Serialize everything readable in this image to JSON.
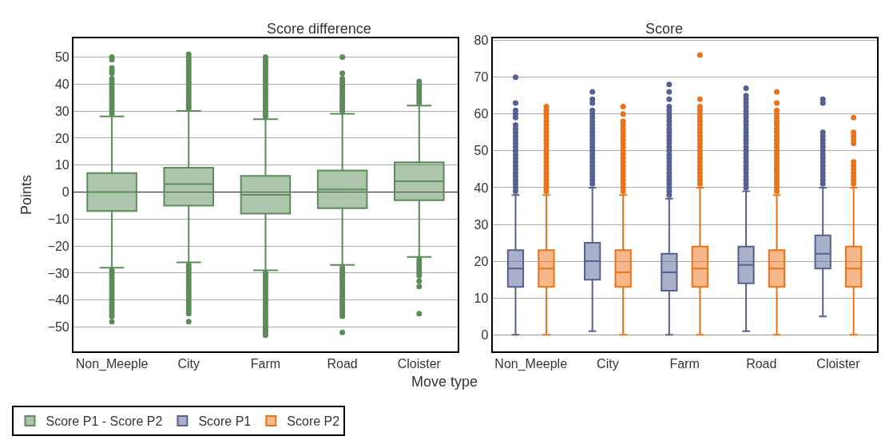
{
  "chart_data": [
    {
      "type": "box",
      "title": "Score difference",
      "ylabel": "Points",
      "categories": [
        "Non_Meeple",
        "City",
        "Farm",
        "Road",
        "Cloister"
      ],
      "ylim": [
        -59,
        57
      ],
      "yticks": [
        -50,
        -40,
        -30,
        -20,
        -10,
        0,
        10,
        20,
        30,
        40,
        50
      ],
      "grid": "y",
      "legend": "bottom",
      "series": [
        {
          "name": "Score P1 - Score P2",
          "color": "#5b8c5a",
          "boxes": [
            {
              "low": -28,
              "q1": -7,
              "median": 0,
              "q3": 7,
              "high": 28,
              "outliers": [
                29,
                30,
                31,
                32,
                33,
                34,
                35,
                36,
                37,
                38,
                39,
                40,
                41,
                42,
                44,
                45,
                46,
                49,
                50,
                -29,
                -30,
                -31,
                -32,
                -33,
                -34,
                -35,
                -36,
                -37,
                -38,
                -39,
                -40,
                -41,
                -42,
                -43,
                -44,
                -45,
                -46,
                -48
              ]
            },
            {
              "low": -26,
              "q1": -5,
              "median": 3,
              "q3": 9,
              "high": 30,
              "outliers": [
                31,
                32,
                33,
                34,
                35,
                36,
                37,
                38,
                39,
                40,
                41,
                42,
                43,
                44,
                45,
                46,
                47,
                48,
                49,
                50,
                51,
                -27,
                -28,
                -29,
                -30,
                -31,
                -32,
                -33,
                -34,
                -35,
                -36,
                -37,
                -38,
                -39,
                -40,
                -41,
                -42,
                -43,
                -44,
                -45,
                -48
              ]
            },
            {
              "low": -29,
              "q1": -8,
              "median": -1,
              "q3": 6,
              "high": 27,
              "outliers": [
                28,
                29,
                30,
                31,
                32,
                33,
                34,
                35,
                36,
                37,
                38,
                39,
                40,
                41,
                42,
                43,
                44,
                45,
                46,
                47,
                48,
                49,
                50,
                -30,
                -31,
                -32,
                -33,
                -34,
                -35,
                -36,
                -37,
                -38,
                -39,
                -40,
                -41,
                -42,
                -43,
                -44,
                -45,
                -46,
                -47,
                -48,
                -49,
                -50,
                -51,
                -52,
                -53
              ]
            },
            {
              "low": -27,
              "q1": -6,
              "median": 1,
              "q3": 8,
              "high": 29,
              "outliers": [
                30,
                31,
                32,
                33,
                34,
                35,
                36,
                37,
                38,
                39,
                40,
                41,
                42,
                44,
                50,
                -28,
                -29,
                -30,
                -31,
                -32,
                -33,
                -34,
                -35,
                -36,
                -37,
                -38,
                -39,
                -40,
                -41,
                -42,
                -43,
                -44,
                -45,
                -46,
                -52
              ]
            },
            {
              "low": -24,
              "q1": -3,
              "median": 4,
              "q3": 11,
              "high": 32,
              "outliers": [
                33,
                34,
                35,
                36,
                37,
                38,
                39,
                40,
                41,
                -25,
                -26,
                -27,
                -28,
                -29,
                -30,
                -31,
                -33,
                -35,
                -45
              ]
            }
          ]
        }
      ]
    },
    {
      "type": "box",
      "title": "Score",
      "xlabel": "Move type",
      "categories": [
        "Non_Meeple",
        "City",
        "Farm",
        "Road",
        "Cloister"
      ],
      "ylim": [
        -4.5,
        80.6
      ],
      "yticks": [
        0,
        10,
        20,
        30,
        40,
        50,
        60,
        70,
        80
      ],
      "grid": "y",
      "legend": "bottom",
      "series": [
        {
          "name": "Score P1",
          "color": "#56618f",
          "boxes": [
            {
              "low": 0,
              "q1": 13,
              "median": 18,
              "q3": 23,
              "high": 38,
              "outliers": [
                39,
                40,
                41,
                42,
                43,
                44,
                45,
                46,
                47,
                48,
                49,
                50,
                51,
                52,
                53,
                54,
                55,
                56,
                57,
                59,
                60,
                61,
                63,
                70
              ]
            },
            {
              "low": 1,
              "q1": 15,
              "median": 20,
              "q3": 25,
              "high": 40,
              "outliers": [
                41,
                42,
                43,
                44,
                45,
                46,
                47,
                48,
                49,
                50,
                51,
                52,
                53,
                54,
                55,
                56,
                57,
                58,
                59,
                60,
                61,
                63,
                64,
                66
              ]
            },
            {
              "low": 0,
              "q1": 12,
              "median": 17,
              "q3": 22,
              "high": 37,
              "outliers": [
                38,
                39,
                40,
                41,
                42,
                43,
                44,
                45,
                46,
                47,
                48,
                49,
                50,
                51,
                52,
                53,
                54,
                55,
                56,
                57,
                58,
                59,
                60,
                61,
                62,
                64,
                66,
                68
              ]
            },
            {
              "low": 1,
              "q1": 14,
              "median": 19,
              "q3": 24,
              "high": 39,
              "outliers": [
                40,
                41,
                42,
                43,
                44,
                45,
                46,
                47,
                48,
                49,
                50,
                51,
                52,
                53,
                54,
                55,
                56,
                57,
                58,
                59,
                60,
                61,
                62,
                63,
                64,
                65,
                67
              ]
            },
            {
              "low": 5,
              "q1": 18,
              "median": 22,
              "q3": 27,
              "high": 40,
              "outliers": [
                41,
                42,
                43,
                44,
                45,
                46,
                47,
                48,
                49,
                50,
                51,
                52,
                53,
                54,
                55,
                63,
                64
              ]
            }
          ]
        },
        {
          "name": "Score P2",
          "color": "#ed7117",
          "boxes": [
            {
              "low": 0,
              "q1": 13,
              "median": 18,
              "q3": 23,
              "high": 38,
              "outliers": [
                39,
                40,
                41,
                42,
                43,
                44,
                45,
                46,
                47,
                48,
                49,
                50,
                51,
                52,
                53,
                54,
                55,
                56,
                57,
                58,
                59,
                60,
                61,
                62
              ]
            },
            {
              "low": 0,
              "q1": 13,
              "median": 17,
              "q3": 23,
              "high": 38,
              "outliers": [
                39,
                40,
                41,
                42,
                43,
                44,
                45,
                46,
                47,
                48,
                49,
                50,
                51,
                52,
                53,
                54,
                55,
                56,
                57,
                58,
                60,
                62
              ]
            },
            {
              "low": 0,
              "q1": 13,
              "median": 18,
              "q3": 24,
              "high": 40,
              "outliers": [
                41,
                42,
                43,
                44,
                45,
                46,
                47,
                48,
                49,
                50,
                51,
                52,
                53,
                54,
                55,
                56,
                57,
                58,
                59,
                60,
                61,
                62,
                64,
                76
              ]
            },
            {
              "low": 0,
              "q1": 13,
              "median": 18,
              "q3": 23,
              "high": 38,
              "outliers": [
                39,
                40,
                41,
                42,
                43,
                44,
                45,
                46,
                47,
                48,
                49,
                50,
                51,
                52,
                53,
                54,
                55,
                56,
                57,
                58,
                59,
                60,
                61,
                63,
                66
              ]
            },
            {
              "low": 0,
              "q1": 13,
              "median": 18,
              "q3": 24,
              "high": 40,
              "outliers": [
                41,
                42,
                43,
                44,
                45,
                46,
                47,
                52,
                53,
                54,
                55,
                59
              ]
            }
          ]
        }
      ]
    }
  ]
}
